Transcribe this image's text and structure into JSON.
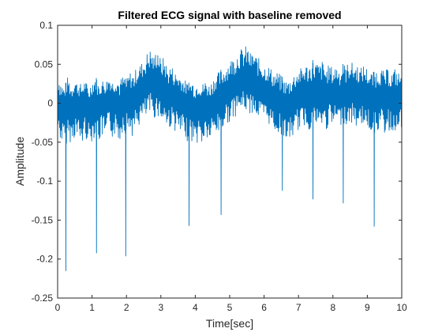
{
  "chart_data": {
    "type": "line",
    "title": "Filtered ECG signal with baseline removed",
    "xlabel": "Time[sec]",
    "ylabel": "Amplitude",
    "xlim": [
      0,
      10
    ],
    "ylim": [
      -0.25,
      0.1
    ],
    "x_ticks": [
      0,
      1,
      2,
      3,
      4,
      5,
      6,
      7,
      8,
      9,
      10
    ],
    "y_ticks": [
      -0.25,
      -0.2,
      -0.15,
      -0.1,
      -0.05,
      0,
      0.05,
      0.1
    ],
    "x_tick_labels": [
      "0",
      "1",
      "2",
      "3",
      "4",
      "5",
      "6",
      "7",
      "8",
      "9",
      "10"
    ],
    "y_tick_labels": [
      "-0.25",
      "-0.2",
      "-0.15",
      "-0.1",
      "-0.05",
      "0",
      "0.05",
      "0.1"
    ],
    "grid": false,
    "box": true,
    "series": [
      {
        "color": "#0072BD",
        "x": [
          0.0,
          0.1,
          0.2,
          0.3,
          0.4,
          0.5,
          0.6,
          0.7,
          0.8,
          0.9,
          1.0,
          1.1,
          1.2,
          1.3,
          1.4,
          1.5,
          1.6,
          1.7,
          1.8,
          1.9,
          2.0,
          2.1,
          2.2,
          2.3,
          2.4,
          2.5,
          2.6,
          2.7,
          2.8,
          2.9,
          3.0,
          3.1,
          3.2,
          3.3,
          3.4,
          3.5,
          3.6,
          3.7,
          3.8,
          3.9,
          4.0,
          4.1,
          4.2,
          4.3,
          4.4,
          4.5,
          4.6,
          4.7,
          4.8,
          4.9,
          5.0,
          5.1,
          5.2,
          5.3,
          5.4,
          5.5,
          5.6,
          5.7,
          5.8,
          5.9,
          6.0,
          6.1,
          6.2,
          6.3,
          6.4,
          6.5,
          6.6,
          6.7,
          6.8,
          6.9,
          7.0,
          7.1,
          7.2,
          7.3,
          7.4,
          7.5,
          7.6,
          7.7,
          7.8,
          7.9,
          8.0,
          8.1,
          8.2,
          8.3,
          8.4,
          8.5,
          8.6,
          8.7,
          8.8,
          8.9,
          9.0,
          9.1,
          9.2,
          9.3,
          9.4,
          9.5,
          9.6,
          9.7,
          9.8,
          9.9,
          10.0
        ],
        "y": [
          0.0,
          -0.01,
          -0.005,
          0.005,
          -0.01,
          0.01,
          0.0,
          -0.005,
          0.005,
          -0.01,
          0.0,
          0.005,
          -0.005,
          0.005,
          0.0,
          0.01,
          0.0,
          0.005,
          -0.005,
          0.01,
          0.005,
          0.01,
          0.0,
          0.015,
          0.02,
          0.02,
          0.025,
          0.03,
          0.025,
          0.03,
          0.02,
          0.02,
          0.01,
          0.015,
          0.01,
          0.005,
          0.005,
          0.0,
          -0.005,
          0.0,
          -0.005,
          0.0,
          -0.005,
          0.0,
          -0.005,
          0.0,
          0.005,
          0.005,
          0.01,
          0.015,
          0.02,
          0.02,
          0.025,
          0.03,
          0.03,
          0.03,
          0.025,
          0.03,
          0.02,
          0.02,
          0.015,
          0.015,
          0.01,
          0.005,
          0.005,
          0.0,
          0.0,
          -0.005,
          0.0,
          0.005,
          0.01,
          0.01,
          0.015,
          0.01,
          0.015,
          0.015,
          0.01,
          0.015,
          0.01,
          0.015,
          0.01,
          0.015,
          0.01,
          0.015,
          0.01,
          0.02,
          0.015,
          0.015,
          0.01,
          0.015,
          0.01,
          0.005,
          0.005,
          0.01,
          0.01,
          0.005,
          0.01,
          0.005,
          0.01,
          0.005,
          0.01
        ],
        "y_upper": [
          0.045,
          0.03,
          0.02,
          0.035,
          0.025,
          0.03,
          0.025,
          0.025,
          0.03,
          0.02,
          0.03,
          0.035,
          0.025,
          0.03,
          0.03,
          0.035,
          0.03,
          0.035,
          0.03,
          0.035,
          0.03,
          0.04,
          0.04,
          0.045,
          0.05,
          0.055,
          0.065,
          0.07,
          0.06,
          0.075,
          0.055,
          0.06,
          0.045,
          0.05,
          0.04,
          0.04,
          0.035,
          0.03,
          0.025,
          0.03,
          0.025,
          0.03,
          0.025,
          0.03,
          0.025,
          0.03,
          0.04,
          0.04,
          0.045,
          0.05,
          0.055,
          0.06,
          0.065,
          0.07,
          0.07,
          0.075,
          0.065,
          0.065,
          0.06,
          0.055,
          0.05,
          0.05,
          0.045,
          0.04,
          0.04,
          0.035,
          0.03,
          0.03,
          0.035,
          0.04,
          0.045,
          0.045,
          0.05,
          0.05,
          0.055,
          0.055,
          0.05,
          0.055,
          0.045,
          0.05,
          0.045,
          0.05,
          0.045,
          0.05,
          0.05,
          0.055,
          0.05,
          0.05,
          0.045,
          0.05,
          0.045,
          0.04,
          0.04,
          0.045,
          0.045,
          0.04,
          0.045,
          0.04,
          0.045,
          0.04,
          0.04
        ],
        "y_lower": [
          -0.035,
          -0.05,
          -0.055,
          -0.05,
          -0.05,
          -0.045,
          -0.05,
          -0.055,
          -0.045,
          -0.05,
          -0.05,
          -0.04,
          -0.05,
          -0.045,
          -0.05,
          -0.04,
          -0.045,
          -0.04,
          -0.05,
          -0.035,
          -0.04,
          -0.035,
          -0.045,
          -0.03,
          -0.03,
          -0.02,
          -0.02,
          -0.015,
          -0.02,
          -0.015,
          -0.025,
          -0.025,
          -0.035,
          -0.03,
          -0.035,
          -0.04,
          -0.045,
          -0.045,
          -0.05,
          -0.05,
          -0.055,
          -0.05,
          -0.055,
          -0.045,
          -0.05,
          -0.045,
          -0.04,
          -0.04,
          -0.035,
          -0.025,
          -0.025,
          -0.02,
          -0.015,
          -0.01,
          -0.01,
          -0.01,
          -0.015,
          -0.01,
          -0.02,
          -0.02,
          -0.025,
          -0.025,
          -0.03,
          -0.035,
          -0.04,
          -0.04,
          -0.045,
          -0.05,
          -0.045,
          -0.04,
          -0.035,
          -0.03,
          -0.03,
          -0.035,
          -0.03,
          -0.03,
          -0.035,
          -0.03,
          -0.035,
          -0.03,
          -0.03,
          -0.025,
          -0.03,
          -0.025,
          -0.03,
          -0.025,
          -0.03,
          -0.03,
          -0.03,
          -0.025,
          -0.035,
          -0.035,
          -0.04,
          -0.035,
          -0.035,
          -0.04,
          -0.035,
          -0.04,
          -0.035,
          -0.04,
          -0.035
        ],
        "r_peaks": [
          {
            "x": 0.24,
            "y": -0.215
          },
          {
            "x": 1.13,
            "y": -0.192
          },
          {
            "x": 1.98,
            "y": -0.196
          },
          {
            "x": 3.82,
            "y": -0.157
          },
          {
            "x": 4.75,
            "y": -0.143
          },
          {
            "x": 6.53,
            "y": -0.112
          },
          {
            "x": 7.42,
            "y": -0.123
          },
          {
            "x": 8.3,
            "y": -0.128
          },
          {
            "x": 9.2,
            "y": -0.158
          }
        ]
      }
    ]
  }
}
